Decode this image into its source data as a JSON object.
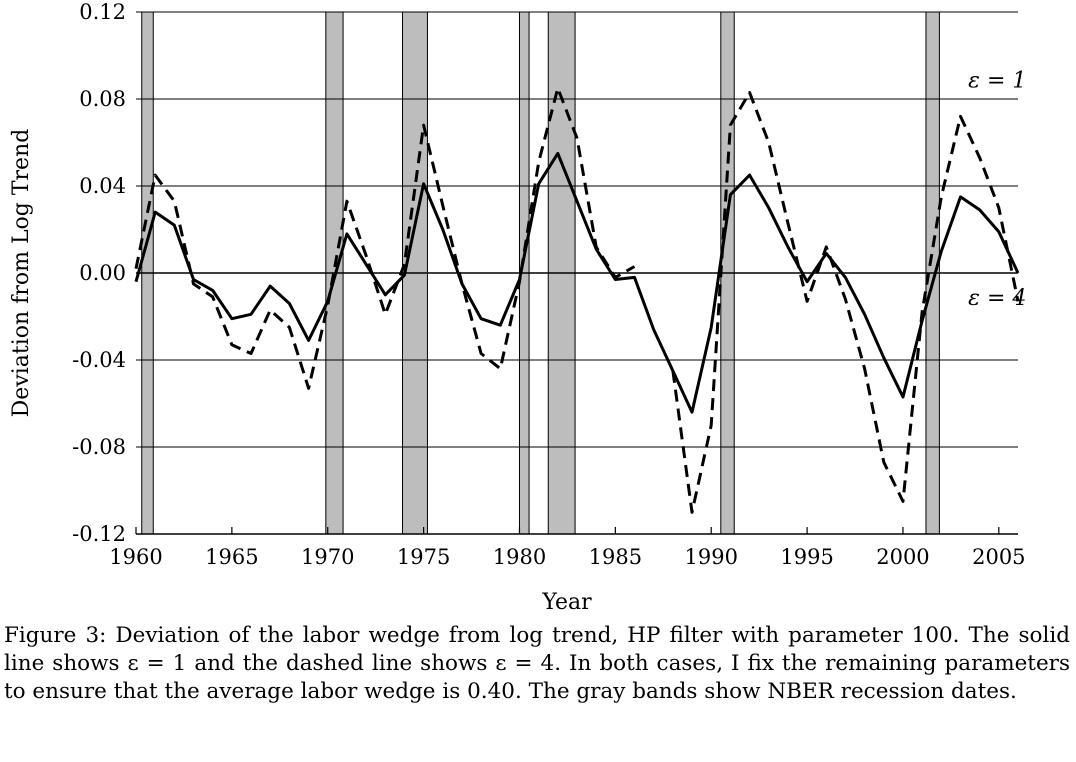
{
  "chart_data": {
    "type": "line",
    "xlabel": "Year",
    "ylabel": "Deviation from Log Trend",
    "xlim": [
      1960,
      2006
    ],
    "ylim": [
      -0.12,
      0.12
    ],
    "xticks": [
      1960,
      1965,
      1970,
      1975,
      1980,
      1985,
      1990,
      1995,
      2000,
      2005
    ],
    "yticks": [
      -0.12,
      -0.08,
      -0.04,
      0.0,
      0.04,
      0.08,
      0.12
    ],
    "ytick_labels": [
      "-0.12",
      "-0.08",
      "-0.04",
      "0.00",
      "0.04",
      "0.08",
      "0.12"
    ],
    "grid": "horizontal",
    "recessions": [
      [
        1960.3,
        1960.9
      ],
      [
        1969.9,
        1970.8
      ],
      [
        1973.9,
        1975.2
      ],
      [
        1980.0,
        1980.5
      ],
      [
        1981.5,
        1982.9
      ],
      [
        1990.5,
        1991.2
      ],
      [
        2001.2,
        2001.9
      ]
    ],
    "series": [
      {
        "name": "ε = 1",
        "style": "solid",
        "x": [
          1960,
          1961,
          1962,
          1963,
          1964,
          1965,
          1966,
          1967,
          1968,
          1969,
          1970,
          1971,
          1972,
          1973,
          1974,
          1975,
          1976,
          1977,
          1978,
          1979,
          1980,
          1981,
          1982,
          1983,
          1984,
          1985,
          1986,
          1987,
          1988,
          1989,
          1990,
          1991,
          1992,
          1993,
          1994,
          1995,
          1996,
          1997,
          1998,
          1999,
          2000,
          2001,
          2002,
          2003,
          2004,
          2005,
          2006
        ],
        "values": [
          -0.004,
          0.028,
          0.022,
          -0.003,
          -0.008,
          -0.021,
          -0.019,
          -0.006,
          -0.014,
          -0.031,
          -0.013,
          0.018,
          0.004,
          -0.01,
          -0.001,
          0.041,
          0.02,
          -0.005,
          -0.021,
          -0.024,
          -0.003,
          0.041,
          0.055,
          0.033,
          0.011,
          -0.003,
          -0.002,
          -0.026,
          -0.045,
          -0.064,
          -0.025,
          0.036,
          0.045,
          0.03,
          0.012,
          -0.004,
          0.009,
          -0.002,
          -0.019,
          -0.039,
          -0.057,
          -0.022,
          0.01,
          0.035,
          0.029,
          0.019,
          0.0
        ]
      },
      {
        "name": "ε = 4",
        "style": "dashed",
        "x": [
          1960,
          1961,
          1962,
          1963,
          1964,
          1965,
          1966,
          1967,
          1968,
          1969,
          1970,
          1971,
          1972,
          1973,
          1974,
          1975,
          1976,
          1977,
          1978,
          1979,
          1980,
          1981,
          1982,
          1983,
          1984,
          1985,
          1986,
          1987,
          1988,
          1989,
          1990,
          1991,
          1992,
          1993,
          1994,
          1995,
          1996,
          1997,
          1998,
          1999,
          2000,
          2001,
          2002,
          2003,
          2004,
          2005,
          2006
        ],
        "values": [
          0.002,
          0.045,
          0.033,
          -0.005,
          -0.011,
          -0.033,
          -0.037,
          -0.017,
          -0.025,
          -0.053,
          -0.015,
          0.033,
          0.008,
          -0.019,
          0.004,
          0.068,
          0.031,
          -0.005,
          -0.037,
          -0.044,
          -0.004,
          0.051,
          0.085,
          0.062,
          0.012,
          -0.002,
          0.003,
          null,
          -0.045,
          -0.11,
          -0.07,
          0.068,
          0.083,
          0.06,
          0.023,
          -0.013,
          0.012,
          -0.012,
          -0.044,
          -0.087,
          -0.105,
          -0.018,
          0.035,
          0.072,
          0.053,
          0.03,
          -0.013
        ]
      }
    ],
    "annotations": [
      {
        "text": "ε = 1",
        "x": 2003.4,
        "y": 0.089
      },
      {
        "text": "ε = 4",
        "x": 2003.4,
        "y": -0.011
      }
    ]
  },
  "caption": "Figure 3: Deviation of the labor wedge from log trend, HP filter with parameter 100. The solid line shows ε = 1 and the dashed line shows ε = 4. In both cases, I fix the remaining parameters to ensure that the average labor wedge is 0.40. The gray bands show NBER recession dates."
}
